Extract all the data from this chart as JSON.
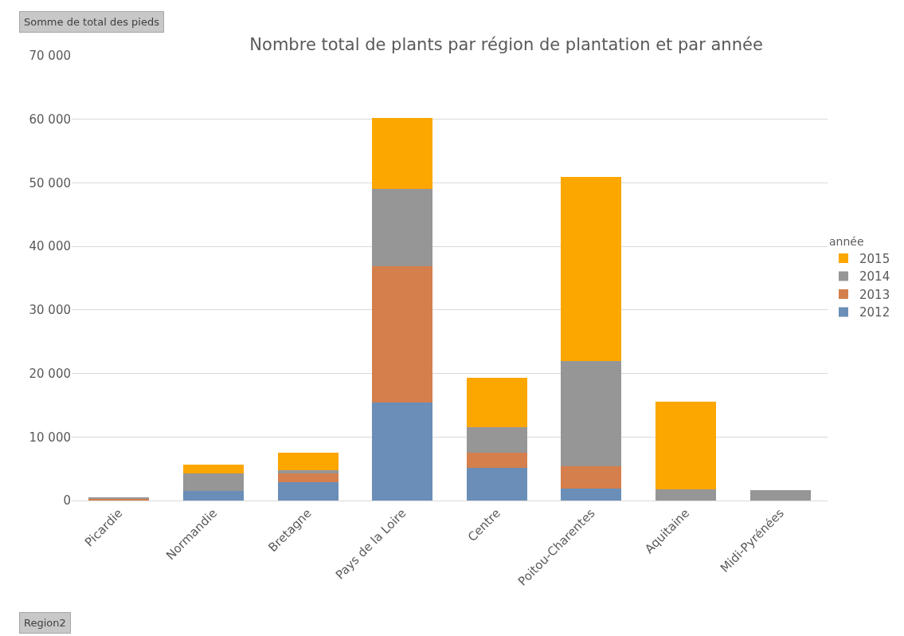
{
  "chart_data": {
    "type": "bar",
    "title": "Nombre total de plants par région de plantation et par année",
    "categories": [
      "Picardie",
      "Normandie",
      "Bretagne",
      "Pays de la Loire",
      "Centre",
      "Poitou-Charentes",
      "Aquitaine",
      "Midi-Pyrénées"
    ],
    "series": [
      {
        "name": "2012",
        "color": "#6a8eb8",
        "values": [
          0,
          1500,
          2900,
          15400,
          5200,
          1900,
          0,
          0
        ]
      },
      {
        "name": "2013",
        "color": "#d57f4c",
        "values": [
          300,
          0,
          1400,
          21500,
          2300,
          3500,
          0,
          0
        ]
      },
      {
        "name": "2014",
        "color": "#969696",
        "values": [
          100,
          2800,
          500,
          12100,
          4100,
          16500,
          1700,
          1600
        ]
      },
      {
        "name": "2015",
        "color": "#fca600",
        "values": [
          0,
          1400,
          2700,
          11200,
          7700,
          29000,
          13800,
          0
        ]
      }
    ],
    "stacked": true,
    "legend": "right",
    "legend_title": "année",
    "grid": "y",
    "ylim": [
      0,
      70000
    ],
    "yticks": [
      {
        "value": 0,
        "label": "0"
      },
      {
        "value": 10000,
        "label": "10 000"
      },
      {
        "value": 20000,
        "label": "20 000"
      },
      {
        "value": 30000,
        "label": "30 000"
      },
      {
        "value": 40000,
        "label": "40 000"
      },
      {
        "value": 50000,
        "label": "50 000"
      },
      {
        "value": 60000,
        "label": "60 000"
      },
      {
        "value": 70000,
        "label": "70 000"
      }
    ],
    "annotations": [
      "Somme de total des pieds",
      "Region2"
    ]
  }
}
